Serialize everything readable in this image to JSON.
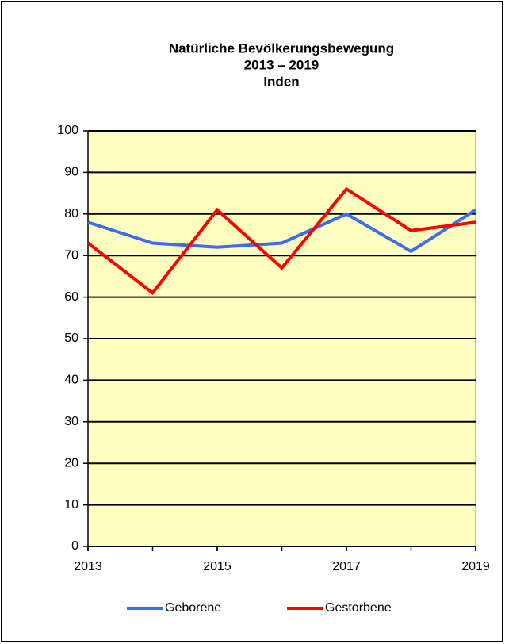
{
  "chart_data": {
    "type": "line",
    "title": [
      "Natürliche Bevölkerungsbewegung",
      "2013 – 2019",
      "Inden"
    ],
    "x": [
      2013,
      2014,
      2015,
      2016,
      2017,
      2018,
      2019
    ],
    "series": [
      {
        "name": "Geborene",
        "color": "#3d6cf2",
        "values": [
          78,
          73,
          72,
          73,
          80,
          71,
          81
        ]
      },
      {
        "name": "Gestorbene",
        "color": "#ff0000",
        "values": [
          73,
          61,
          81,
          67,
          86,
          76,
          78
        ]
      }
    ],
    "xlim": [
      2013,
      2019
    ],
    "xticks": [
      2013,
      2015,
      2017,
      2019
    ],
    "ylim": [
      0,
      100
    ],
    "yticks": [
      0,
      10,
      20,
      30,
      40,
      50,
      60,
      70,
      80,
      90,
      100
    ],
    "grid": true,
    "legend": "bottom",
    "plot_background": "#ffffc0"
  }
}
